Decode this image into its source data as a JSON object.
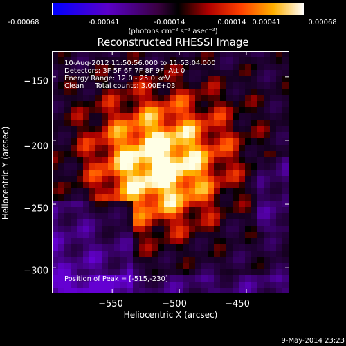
{
  "colorbar": {
    "ticks": [
      "-0.00068",
      "-0.00041",
      "-0.00014",
      "0.00014",
      "0.00041",
      "0.00068"
    ],
    "unit": "(photons cm⁻² s⁻¹ asec⁻²)"
  },
  "chart_data": {
    "type": "heatmap",
    "title": "Reconstructed RHESSI Image",
    "xlabel": "Heliocentric X (arcsec)",
    "ylabel": "Heliocentric Y (arcsec)",
    "xlim": [
      -595,
      -418
    ],
    "ylim": [
      -320,
      -130
    ],
    "x_ticks": [
      -550,
      -500,
      -450
    ],
    "x_tick_labels": [
      "−550",
      "−500",
      "−450"
    ],
    "y_ticks": [
      -150,
      -200,
      -250,
      -300
    ],
    "y_tick_labels": [
      "−150",
      "−200",
      "−250",
      "−300"
    ],
    "value_range": [
      -0.00068,
      0.00068
    ],
    "peak": [
      -515,
      -230
    ],
    "annotations": [
      "10-Aug-2012 11:50:56.000 to 11:53:04.000",
      "Detectors: 3F 5F 6F 7F 8F 9F, Att 0",
      "Energy Range: 12.0 - 25.0 keV",
      "Clean     Total counts: 3.00E+03"
    ],
    "peak_label": "Position of Peak = [-515,-230]"
  },
  "footer": {
    "timestamp": "9-May-2014 23:23"
  }
}
